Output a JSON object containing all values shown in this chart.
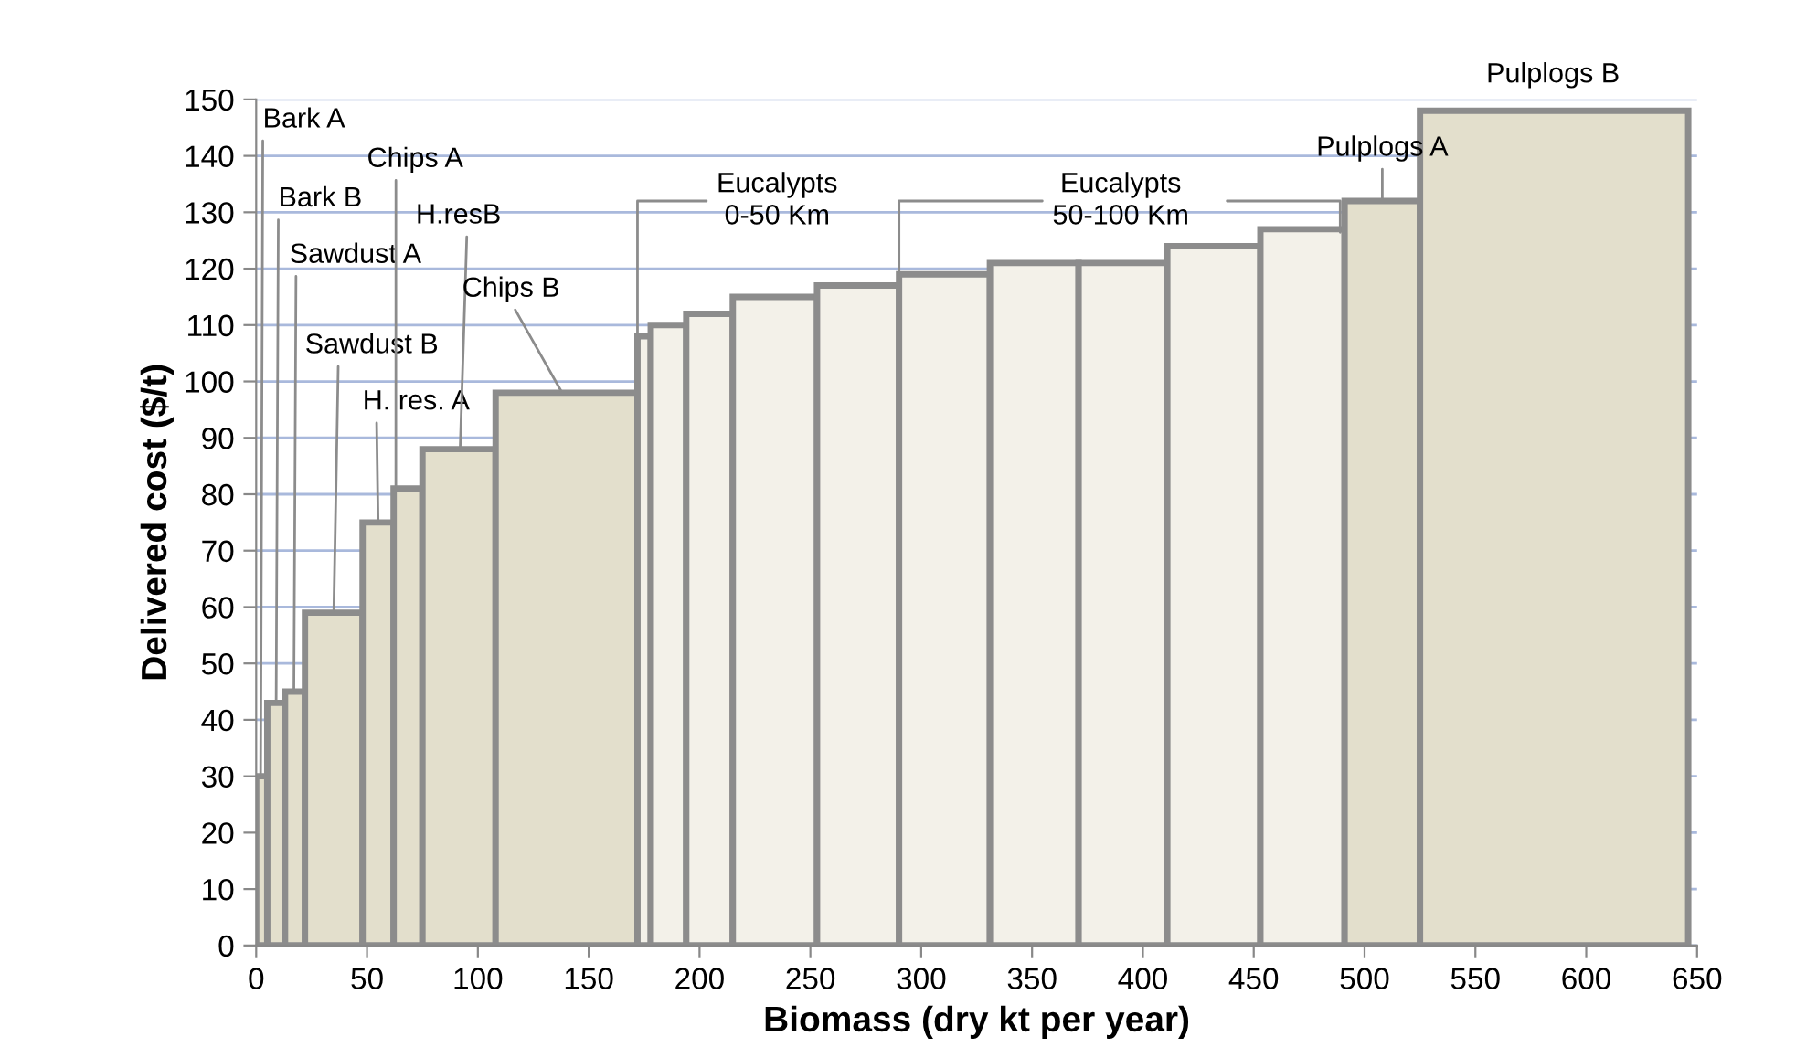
{
  "chart_data": {
    "type": "histogram",
    "xlabel": "Biomass (dry kt per year)",
    "ylabel": "Delivered cost ($/t)",
    "bins": [
      0,
      5,
      13,
      22,
      48,
      62,
      75,
      108,
      172,
      178,
      194,
      215,
      253,
      290,
      331,
      371,
      411,
      453,
      491,
      525,
      646
    ],
    "values": [
      30,
      43,
      45,
      59,
      75,
      81,
      88,
      98,
      108,
      110,
      112,
      115,
      117,
      119,
      121,
      121,
      124,
      127,
      132,
      148
    ],
    "colors": [
      "#e3dfcc",
      "#e3dfcc",
      "#e3dfcc",
      "#e3dfcc",
      "#e3dfcc",
      "#e3dfcc",
      "#e3dfcc",
      "#e3dfcc",
      "#f3f1e9",
      "#f3f1e9",
      "#f3f1e9",
      "#f3f1e9",
      "#f3f1e9",
      "#f3f1e9",
      "#f3f1e9",
      "#f3f1e9",
      "#f3f1e9",
      "#f3f1e9",
      "#e3dfcc",
      "#e3dfcc"
    ],
    "xlim": [
      0,
      650
    ],
    "xticks": [
      0,
      50,
      100,
      150,
      200,
      250,
      300,
      350,
      400,
      450,
      500,
      550,
      600,
      650
    ],
    "ylim": [
      0,
      150
    ],
    "yticks": [
      0,
      10,
      20,
      30,
      40,
      50,
      60,
      70,
      80,
      90,
      100,
      110,
      120,
      130,
      140,
      150
    ],
    "grid": "y",
    "legend": false,
    "annotations": [
      {
        "text": "Bark A",
        "x": 2,
        "y": 30
      },
      {
        "text": "Bark B",
        "x": 9,
        "y": 43
      },
      {
        "text": "Sawdust A",
        "x": 17,
        "y": 45
      },
      {
        "text": "Sawdust B",
        "x": 35,
        "y": 59
      },
      {
        "text": "H. res. A",
        "x": 55,
        "y": 75
      },
      {
        "text": "Chips A",
        "x": 63,
        "y": 81
      },
      {
        "text": "H.resB",
        "x": 92,
        "y": 88
      },
      {
        "text": "Chips B",
        "x": 138,
        "y": 98
      },
      {
        "text": "Eucalypts\n0-50 Km",
        "x": 172,
        "y": 108
      },
      {
        "text": "Eucalypts\n50-100 Km",
        "x": 290,
        "y": 119
      },
      {
        "text": "Pulplogs A",
        "x": 508,
        "y": 132
      },
      {
        "text": "Pulplogs B",
        "x": 585,
        "y": 148
      }
    ]
  }
}
